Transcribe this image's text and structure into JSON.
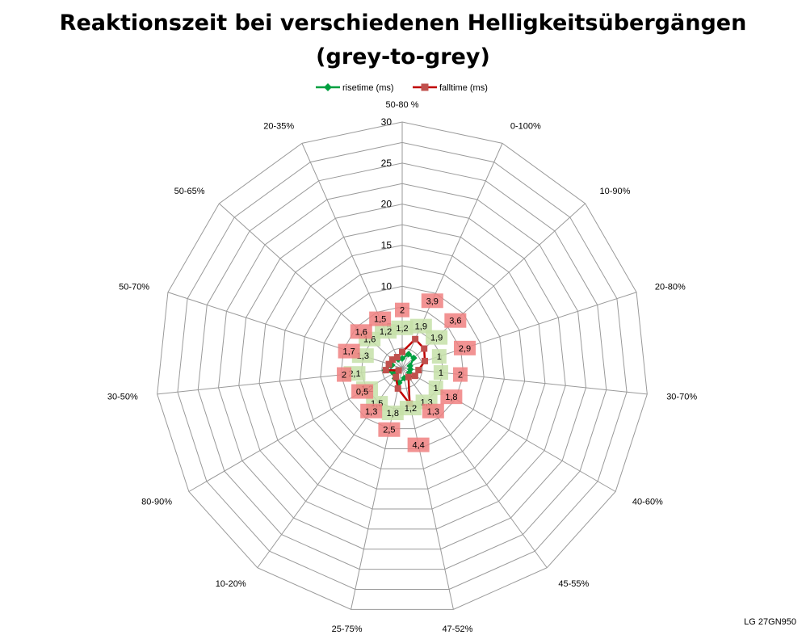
{
  "title_line1": "Reaktionszeit bei verschiedenen Helligkeitsübergängen",
  "title_line2": "(grey-to-grey)",
  "footnote": "LG 27GN950",
  "chart_data": {
    "type": "radar",
    "title": "Reaktionszeit bei verschiedenen Helligkeitsübergängen (grey-to-grey)",
    "categories": [
      "50-80 %",
      "0-100%",
      "10-90%",
      "20-80%",
      "30-70%",
      "40-60%",
      "45-55%",
      "47-52%",
      "25-75%",
      "10-20%",
      "80-90%",
      "30-50%",
      "50-70%",
      "50-65%",
      "20-35%"
    ],
    "rlim": [
      0,
      30
    ],
    "ticks": [
      "0",
      "5",
      "10",
      "15",
      "20",
      "25",
      "30"
    ],
    "grid": true,
    "legend": "top",
    "series": [
      {
        "name": "risetime (ms)",
        "color": "#00a040",
        "label_bg": "#c6e0a8",
        "values": [
          1.2,
          1.9,
          1.9,
          1,
          1,
          1,
          1.3,
          1.2,
          1.8,
          1.5,
          1.2,
          2.1,
          1.3,
          1.6,
          1.2
        ],
        "labels": [
          "1,2",
          "1,9",
          "1,9",
          "1",
          "1",
          "1",
          "1,3",
          "1,2",
          "1,8",
          "1,5",
          "1,2",
          "2,1",
          "1,3",
          "1,6",
          "1,2"
        ]
      },
      {
        "name": "falltime (ms)",
        "color": "#c00000",
        "label_bg": "#f08080",
        "values": [
          2,
          3.9,
          3.6,
          2.9,
          2,
          1.8,
          1.3,
          4.4,
          2.5,
          1.3,
          0.5,
          2,
          1.7,
          1.6,
          1.5
        ],
        "labels": [
          "2",
          "3,9",
          "3,6",
          "2,9",
          "2",
          "1,8",
          "1,3",
          "4,4",
          "2,5",
          "1,3",
          "0,5",
          "2",
          "1,7",
          "1,6",
          "1,5"
        ]
      }
    ]
  }
}
